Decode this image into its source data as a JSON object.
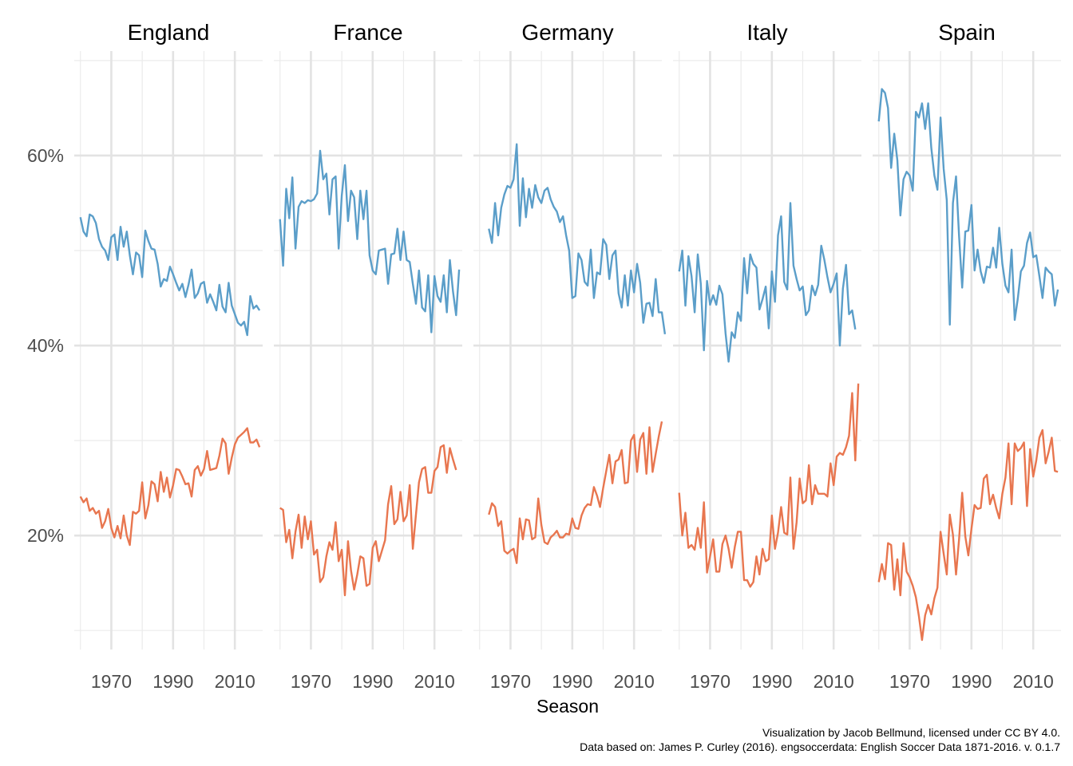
{
  "chart_data": {
    "type": "line",
    "xlabel": "Season",
    "ylabel": "",
    "xlim": [
      1958,
      2019
    ],
    "ylim": [
      8,
      71
    ],
    "x_ticks": [
      1970,
      1990,
      2010
    ],
    "y_ticks": [
      20,
      40,
      60
    ],
    "y_tick_labels": [
      "20%",
      "40%",
      "60%"
    ],
    "y_minor_ticks": [
      10,
      30,
      50,
      70
    ],
    "grid": true,
    "legend": "none",
    "colors": {
      "upper": "#5b9ec9",
      "lower": "#e8764f"
    },
    "panels": [
      {
        "name": "England",
        "series": [
          {
            "color": "#5b9ec9",
            "x_start": 1960,
            "values": [
              53.5,
              52,
              51.5,
              53.8,
              53.6,
              52.9,
              51.2,
              50.4,
              50,
              49,
              51.4,
              51.7,
              49,
              52.5,
              50.4,
              52,
              49.5,
              47.5,
              49.8,
              49.5,
              47.2,
              52.1,
              51,
              50.2,
              50.1,
              48.6,
              46.2,
              47,
              46.8,
              48.3,
              47.5,
              46.6,
              45.8,
              46.5,
              45.1,
              46.4,
              48,
              45,
              45.5,
              46.5,
              46.7,
              44.5,
              45.4,
              44.6,
              43.7,
              46.4,
              44.1,
              43.5,
              46.6,
              44.2,
              43.3,
              42.4,
              42.1,
              42.5,
              41.1,
              45.2,
              43.9,
              44.2,
              43.7
            ]
          },
          {
            "color": "#e8764f",
            "x_start": 1960,
            "values": [
              24.1,
              23.5,
              23.9,
              22.6,
              22.9,
              22.3,
              22.6,
              20.8,
              21.5,
              22.8,
              20.8,
              19.8,
              21,
              19.7,
              22.1,
              20,
              19,
              22.5,
              22.3,
              22.6,
              25.6,
              21.8,
              23.2,
              25.7,
              25.4,
              23.6,
              26.7,
              24.6,
              26.1,
              24,
              25.3,
              27,
              26.9,
              26.2,
              25.4,
              25.5,
              24.1,
              26.9,
              27.3,
              26.3,
              27,
              28.9,
              26.9,
              27,
              27.1,
              28.4,
              30.2,
              29.7,
              26.5,
              28.2,
              29.6,
              30.3,
              30.6,
              30.9,
              31.3,
              29.8,
              29.8,
              30.1,
              29.3
            ]
          }
        ]
      },
      {
        "name": "France",
        "series": [
          {
            "color": "#5b9ec9",
            "x_start": 1960,
            "values": [
              53.3,
              48.4,
              56.5,
              53.4,
              57.7,
              50.2,
              54.6,
              55.2,
              55,
              55.3,
              55.2,
              55.4,
              56,
              60.5,
              57.5,
              58.1,
              53.8,
              57.5,
              57.8,
              50.2,
              55.8,
              59,
              53.1,
              56.3,
              55.6,
              51.2,
              56.3,
              53.3,
              56.3,
              49.5,
              47.9,
              47.5,
              50,
              50.1,
              50.2,
              46.5,
              49.6,
              49.7,
              52.3,
              49,
              52,
              49,
              48.8,
              46.5,
              44.4,
              47.9,
              44,
              43.6,
              47.4,
              41.4,
              47.3,
              45.2,
              44.6,
              47.4,
              43.5,
              49,
              45.7,
              43.2,
              48
            ]
          },
          {
            "color": "#e8764f",
            "x_start": 1960,
            "values": [
              22.9,
              22.7,
              19.3,
              20.6,
              17.6,
              20.4,
              22.2,
              18.7,
              22,
              19.6,
              21.5,
              18,
              18.5,
              15.1,
              15.6,
              17.8,
              19.3,
              18.5,
              21.4,
              17.3,
              18.5,
              13.7,
              19.4,
              16.3,
              14.3,
              15.9,
              17.8,
              17.6,
              14.7,
              14.9,
              18.7,
              19.4,
              17.3,
              18.4,
              19.5,
              23.3,
              25.2,
              21.2,
              21.7,
              24.6,
              21.5,
              22.1,
              25.3,
              18.6,
              22.2,
              25.6,
              27,
              27.2,
              24.5,
              24.5,
              26.8,
              27.2,
              29.3,
              29.5,
              26.6,
              29.2,
              28,
              26.9
            ]
          }
        ]
      },
      {
        "name": "Germany",
        "series": [
          {
            "color": "#5b9ec9",
            "x_start": 1963,
            "values": [
              52.3,
              50.8,
              55,
              51.6,
              54.5,
              55.9,
              56.8,
              56.6,
              57.5,
              61.2,
              52.6,
              57.6,
              53.5,
              56.5,
              54.5,
              56.9,
              55.6,
              55,
              56.3,
              56.6,
              55.4,
              54.6,
              54.1,
              53,
              53.6,
              51.6,
              50,
              45,
              45.2,
              49.7,
              49,
              46.7,
              46.3,
              50.1,
              45,
              47.7,
              47.5,
              51.2,
              50.6,
              47,
              49.5,
              50,
              45.5,
              44,
              47.4,
              44.2,
              47.9,
              45.6,
              48.6,
              46.6,
              42.4,
              44.4,
              44.5,
              43.1,
              47,
              43.5,
              43.5,
              41.2
            ]
          },
          {
            "color": "#e8764f",
            "x_start": 1963,
            "values": [
              22.2,
              23.4,
              23,
              21,
              21.5,
              18.4,
              18.1,
              18.4,
              18.6,
              17.1,
              21.8,
              19.6,
              21.7,
              21.6,
              19.6,
              19.8,
              23.9,
              21.1,
              19.3,
              19.1,
              19.8,
              20.1,
              20.5,
              19.8,
              19.8,
              20.2,
              20.1,
              21.8,
              20.8,
              20.7,
              22.1,
              22.9,
              23.3,
              23.2,
              25.1,
              24.2,
              23,
              25,
              26.8,
              28.5,
              25.5,
              27.8,
              28,
              29,
              25.5,
              25.6,
              30,
              30.6,
              26.7,
              30.1,
              30.8,
              26.5,
              31.4,
              26.7,
              28.6,
              30.4,
              32
            ]
          }
        ]
      },
      {
        "name": "Italy",
        "series": [
          {
            "color": "#5b9ec9",
            "x_start": 1960,
            "values": [
              47.8,
              50,
              44.2,
              49.4,
              47.3,
              43.5,
              49.6,
              46.5,
              39.5,
              46.8,
              44.3,
              45.3,
              44.3,
              46.3,
              45.4,
              41.3,
              38.3,
              41.4,
              40.8,
              43.5,
              42.6,
              49.2,
              45.5,
              49.6,
              48.6,
              48.2,
              43.8,
              44.9,
              46.2,
              41.8,
              47.8,
              44.6,
              51.6,
              53.6,
              46.7,
              45.9,
              55,
              48.4,
              47,
              45.8,
              46.2,
              43.2,
              43.7,
              46.3,
              45.3,
              46.4,
              50.5,
              49,
              47.2,
              45.6,
              46.5,
              47.6,
              40,
              46,
              48.5,
              43.3,
              43.7,
              41.7
            ]
          },
          {
            "color": "#e8764f",
            "x_start": 1960,
            "values": [
              24.5,
              20,
              22.4,
              18.7,
              19,
              18.5,
              20.8,
              18.7,
              23.5,
              16.1,
              17.8,
              19.6,
              16.2,
              16.2,
              19.1,
              20,
              18.6,
              16.6,
              18.8,
              20.4,
              20.4,
              15.3,
              15.3,
              14.6,
              15.1,
              17.8,
              15.9,
              18.6,
              17.3,
              17.5,
              22.1,
              18.6,
              20.3,
              23,
              20.3,
              20.1,
              26.1,
              18.6,
              21.4,
              26,
              23.4,
              23.7,
              27.4,
              23.3,
              25.3,
              24.4,
              24.4,
              24.4,
              24.1,
              27.6,
              25.3,
              28.3,
              28.7,
              28.5,
              29.3,
              30.5,
              35,
              27.9,
              36
            ]
          }
        ]
      },
      {
        "name": "Spain",
        "series": [
          {
            "color": "#5b9ec9",
            "x_start": 1960,
            "values": [
              63.6,
              67,
              66.6,
              65,
              58.7,
              62.3,
              59.5,
              53.7,
              57.5,
              58.3,
              57.9,
              56.3,
              64.6,
              64,
              65.5,
              62.8,
              65.5,
              60.8,
              57.9,
              56.4,
              64,
              58.6,
              55.3,
              42.2,
              55,
              57.8,
              51.5,
              46.1,
              52,
              52.1,
              54.8,
              47.9,
              50.1,
              47.8,
              46.6,
              48.3,
              48.2,
              50.3,
              48.2,
              52.4,
              48.6,
              46.3,
              45.6,
              50.1,
              42.7,
              44.9,
              47.8,
              48.4,
              50.8,
              51.9,
              49.3,
              49.5,
              47.3,
              45,
              48.2,
              47.8,
              47.5,
              44.2,
              45.9
            ]
          },
          {
            "color": "#e8764f",
            "x_start": 1960,
            "values": [
              15.1,
              17,
              15.4,
              19.2,
              19,
              14.3,
              17.5,
              13.7,
              19.2,
              16.2,
              15.6,
              14.7,
              13.5,
              11.5,
              9,
              11.6,
              12.7,
              11.7,
              13.4,
              14.5,
              20.4,
              18.1,
              15.9,
              22.2,
              20.1,
              15.9,
              19.6,
              24.5,
              19.9,
              17.9,
              20.7,
              23.2,
              22.8,
              22.9,
              26,
              26.4,
              23.3,
              24.3,
              22.9,
              21.8,
              24.4,
              26.1,
              29.7,
              23.3,
              29.7,
              28.9,
              29.2,
              29.8,
              23.1,
              29.1,
              26.2,
              27.9,
              30.3,
              31.1,
              27.6,
              28.8,
              30.3,
              26.8,
              26.7
            ]
          }
        ]
      }
    ]
  },
  "caption": {
    "line1": "Visualization by Jacob Bellmund, licensed under CC BY 4.0.",
    "line2": "Data based on: James P. Curley (2016). engsoccerdata: English Soccer Data 1871-2016. v. 0.1.7"
  }
}
